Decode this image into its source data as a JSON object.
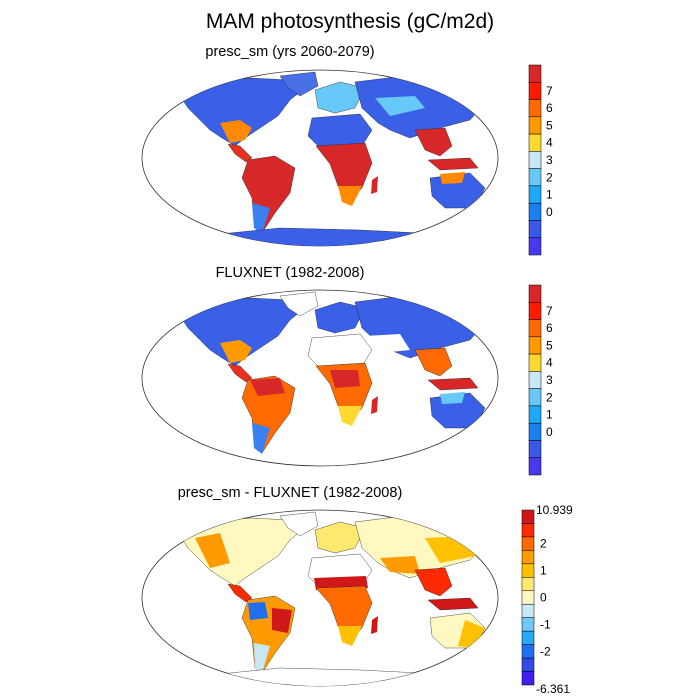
{
  "title": "MAM photosynthesis (gC/m2d)",
  "panels": [
    {
      "id": "presc",
      "title": "presc_sm (yrs 2060-2079)",
      "colorbar": {
        "labels": [
          "7",
          "6",
          "5",
          "4",
          "3",
          "2",
          "1",
          "0"
        ],
        "colors": [
          "#d62828",
          "#ff1a00",
          "#ff6a00",
          "#ff9a00",
          "#ffd830",
          "#c8e8f5",
          "#68c8f8",
          "#20a8f8",
          "#1a80f0",
          "#3a58e8",
          "#4838f0"
        ]
      }
    },
    {
      "id": "fluxnet",
      "title": "FLUXNET (1982-2008)",
      "colorbar": {
        "labels": [
          "7",
          "6",
          "5",
          "4",
          "3",
          "2",
          "1",
          "0"
        ],
        "colors": [
          "#d62828",
          "#ff1a00",
          "#ff6a00",
          "#ff9a00",
          "#ffd830",
          "#c8e8f5",
          "#68c8f8",
          "#20a8f8",
          "#1a80f0",
          "#3a58e8",
          "#4838f0"
        ]
      }
    },
    {
      "id": "diff",
      "title": "presc_sm - FLUXNET (1982-2008)",
      "colorbar": {
        "max_label": "10.939",
        "min_label": "-6.361",
        "labels": [
          "2",
          "1",
          "0",
          "-1",
          "-2"
        ],
        "colors": [
          "#d01818",
          "#ff2a00",
          "#ff6a00",
          "#ff9a00",
          "#ffc000",
          "#ffe870",
          "#fff8c0",
          "#c8e8f5",
          "#70c8f8",
          "#28a8f8",
          "#2070f0",
          "#3048e8",
          "#4020f0"
        ]
      }
    }
  ]
}
